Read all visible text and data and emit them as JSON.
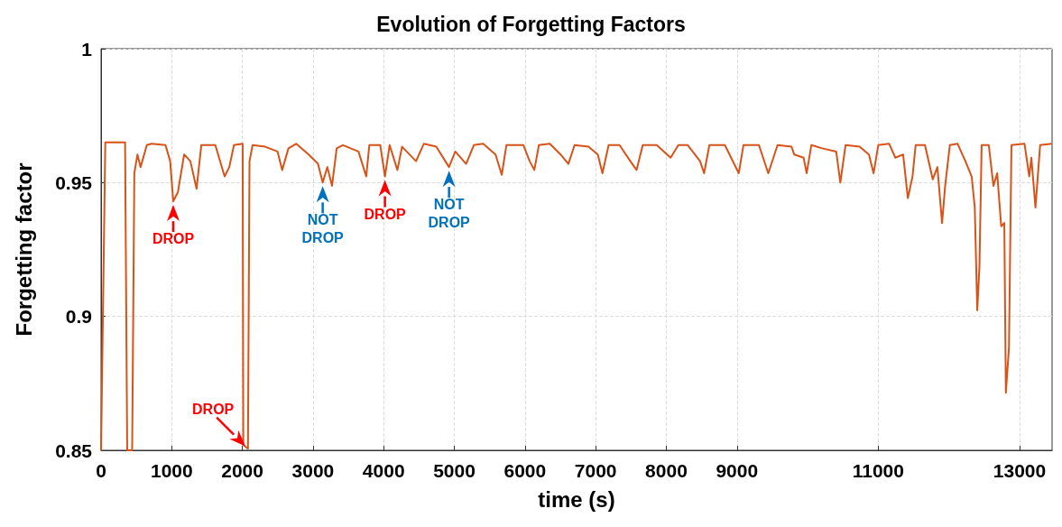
{
  "chart_data": {
    "type": "line",
    "title": "Evolution of Forgetting Factors",
    "xlabel": "time (s)",
    "ylabel": "Forgetting factor",
    "xlim": [
      0,
      13460
    ],
    "xticks": [
      0,
      1000,
      2000,
      3000,
      4000,
      5000,
      6000,
      7000,
      8000,
      9000,
      11000,
      13000
    ],
    "ylim": [
      0.85,
      1
    ],
    "yticks": [
      0.85,
      0.9,
      0.95,
      1
    ],
    "grid": true,
    "marker": "none",
    "line_style": "solid",
    "series": [
      {
        "color": "#d95319",
        "x": [
          0,
          60,
          340,
          370,
          440,
          471,
          515,
          559,
          648,
          714,
          912,
          978,
          1022,
          1088,
          1176,
          1264,
          1352,
          1419,
          1617,
          1749,
          1815,
          1881,
          2004,
          2013,
          2079,
          2101,
          2145,
          2322,
          2498,
          2564,
          2652,
          2762,
          2938,
          3070,
          3137,
          3203,
          3269,
          3335,
          3423,
          3643,
          3753,
          3797,
          3952,
          4018,
          4084,
          4194,
          4260,
          4458,
          4568,
          4744,
          4925,
          5013,
          5167,
          5276,
          5408,
          5583,
          5671,
          5737,
          5978,
          6066,
          6132,
          6197,
          6351,
          6504,
          6614,
          6702,
          6899,
          7031,
          7096,
          7184,
          7338,
          7491,
          7579,
          7667,
          7864,
          8061,
          8171,
          8303,
          8478,
          8535,
          8610,
          8829,
          9026,
          9092,
          9311,
          9443,
          9575,
          9772,
          9811,
          9943,
          9987,
          10053,
          10207,
          10405,
          10463,
          10537,
          10736,
          10868,
          10934,
          11000,
          11154,
          11242,
          11352,
          11419,
          11485,
          11529,
          11661,
          11771,
          11837,
          11903,
          11947,
          12013,
          12123,
          12233,
          12322,
          12366,
          12401,
          12432,
          12463,
          12564,
          12630,
          12683,
          12740,
          12784,
          12806,
          12850,
          12885,
          13070,
          13137,
          13167,
          13225,
          13291,
          13458
        ],
        "values": [
          0.85,
          0.965,
          0.965,
          0.85,
          0.85,
          0.9535,
          0.9605,
          0.9558,
          0.964,
          0.9645,
          0.964,
          0.958,
          0.943,
          0.9465,
          0.9605,
          0.958,
          0.9477,
          0.964,
          0.964,
          0.9523,
          0.9558,
          0.964,
          0.9645,
          0.852,
          0.8506,
          0.958,
          0.964,
          0.9634,
          0.9616,
          0.9547,
          0.9628,
          0.9645,
          0.9605,
          0.957,
          0.95,
          0.9558,
          0.9488,
          0.9628,
          0.964,
          0.9616,
          0.9523,
          0.964,
          0.964,
          0.9523,
          0.964,
          0.9547,
          0.9634,
          0.958,
          0.9645,
          0.9634,
          0.9558,
          0.9616,
          0.957,
          0.964,
          0.9645,
          0.9605,
          0.9529,
          0.964,
          0.964,
          0.958,
          0.9547,
          0.964,
          0.9645,
          0.9605,
          0.957,
          0.964,
          0.9634,
          0.9605,
          0.9535,
          0.964,
          0.964,
          0.958,
          0.9547,
          0.964,
          0.964,
          0.9593,
          0.964,
          0.964,
          0.958,
          0.9535,
          0.964,
          0.964,
          0.9535,
          0.964,
          0.964,
          0.9535,
          0.964,
          0.9634,
          0.9605,
          0.9593,
          0.9535,
          0.964,
          0.9628,
          0.9616,
          0.95,
          0.964,
          0.9634,
          0.9605,
          0.9535,
          0.964,
          0.9645,
          0.9593,
          0.9605,
          0.9442,
          0.9523,
          0.964,
          0.964,
          0.9512,
          0.9558,
          0.9349,
          0.9488,
          0.964,
          0.9645,
          0.958,
          0.9523,
          0.9407,
          0.9023,
          0.9186,
          0.964,
          0.964,
          0.9488,
          0.9535,
          0.9337,
          0.9349,
          0.8715,
          0.8884,
          0.964,
          0.9645,
          0.9523,
          0.9593,
          0.9407,
          0.964,
          0.9645
        ]
      }
    ],
    "annotations": [
      {
        "text": "DROP",
        "x": 1022,
        "y": 0.943
      },
      {
        "text": "DROP",
        "x": 2079,
        "y": 0.8506
      },
      {
        "text": "NOT DROP",
        "x": 3137,
        "y": 0.95
      },
      {
        "text": "DROP",
        "x": 4018,
        "y": 0.9523
      },
      {
        "text": "NOT DROP",
        "x": 4925,
        "y": 0.9558
      }
    ]
  }
}
